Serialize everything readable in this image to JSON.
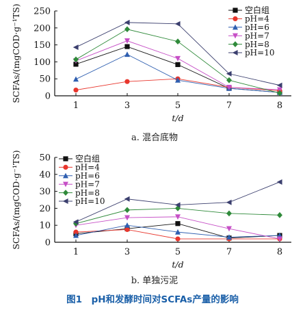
{
  "figure_caption": "图1　pH和发酵时间对SCFAs产量的影响",
  "colors": {
    "空白组": "#111111",
    "pH=4": "#e8362d",
    "pH=6": "#2f5fb0",
    "pH=7": "#c64fc6",
    "pH=8": "#2f8a3a",
    "pH=10": "#3b3f6e",
    "caption": "#1a5fa8"
  },
  "chart_data": [
    {
      "type": "line",
      "caption": "a. 混合底物",
      "xlabel": "t/d",
      "ylabel": "SCFAs/(mgCOD·g⁻¹TS)",
      "x": [
        "1",
        "3",
        "5",
        "7",
        "8"
      ],
      "ylim": [
        0,
        250
      ],
      "yticks": [
        0,
        50,
        100,
        150,
        200,
        250
      ],
      "legend_position": "top-right",
      "series": [
        {
          "name": "空白组",
          "marker": "square",
          "values": [
            93,
            145,
            92,
            22,
            10
          ]
        },
        {
          "name": "pH=4",
          "marker": "circle",
          "values": [
            17,
            42,
            50,
            25,
            15
          ]
        },
        {
          "name": "pH=6",
          "marker": "triangle-up",
          "values": [
            49,
            122,
            46,
            22,
            10
          ]
        },
        {
          "name": "pH=7",
          "marker": "triangle-down",
          "values": [
            103,
            162,
            110,
            25,
            18
          ]
        },
        {
          "name": "pH=8",
          "marker": "diamond",
          "values": [
            107,
            196,
            160,
            46,
            8
          ]
        },
        {
          "name": "pH=10",
          "marker": "triangle-left",
          "values": [
            143,
            216,
            212,
            65,
            31
          ]
        }
      ]
    },
    {
      "type": "line",
      "caption": "b. 单独污泥",
      "xlabel": "t/d",
      "ylabel": "SCFAs/(mgCOD·g⁻¹TS)",
      "x": [
        "1",
        "3",
        "5",
        "7",
        "8"
      ],
      "ylim": [
        0,
        50
      ],
      "yticks": [
        0,
        10,
        20,
        30,
        40,
        50
      ],
      "legend_position": "top-left",
      "series": [
        {
          "name": "空白组",
          "marker": "square",
          "values": [
            5,
            8,
            11,
            2.5,
            4
          ]
        },
        {
          "name": "pH=4",
          "marker": "circle",
          "values": [
            6,
            7.5,
            2,
            2,
            2
          ]
        },
        {
          "name": "pH=6",
          "marker": "triangle-up",
          "values": [
            4,
            10,
            6,
            3,
            4
          ]
        },
        {
          "name": "pH=7",
          "marker": "triangle-down",
          "values": [
            10,
            14.5,
            15,
            8,
            2
          ]
        },
        {
          "name": "pH=8",
          "marker": "diamond",
          "values": [
            11,
            19,
            20,
            17,
            16
          ]
        },
        {
          "name": "pH=10",
          "marker": "triangle-left",
          "values": [
            12,
            25.5,
            22,
            23.5,
            35.5
          ]
        }
      ]
    }
  ]
}
